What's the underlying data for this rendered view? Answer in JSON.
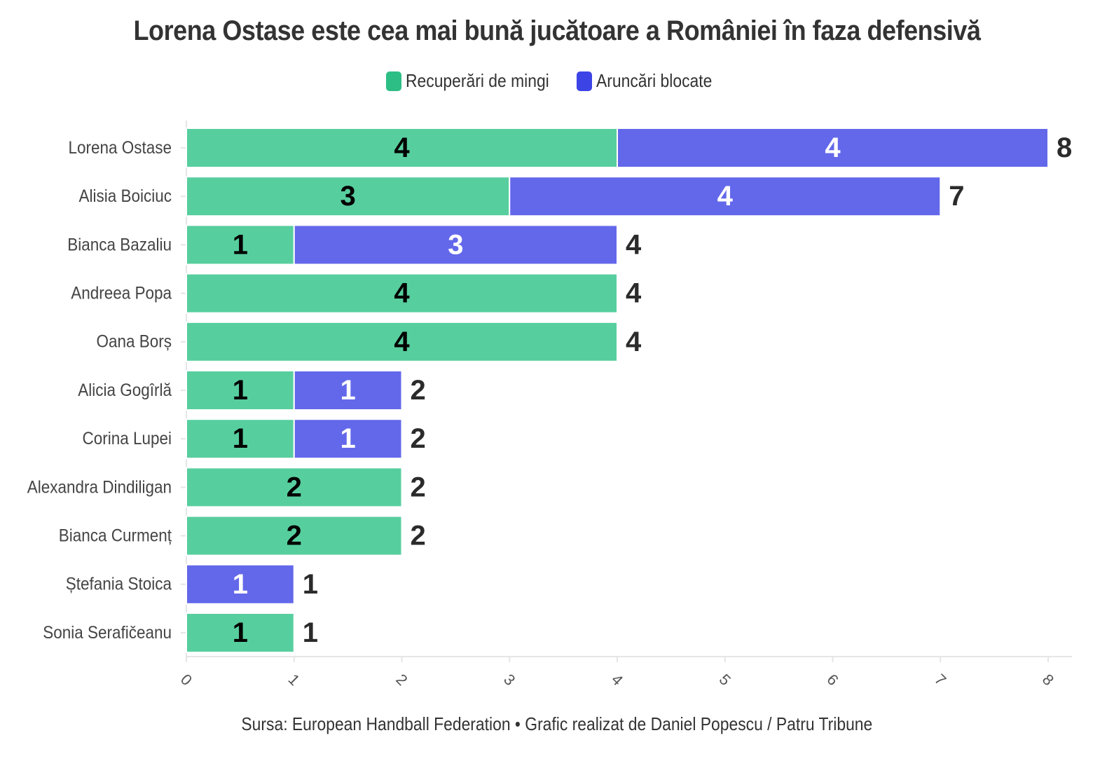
{
  "title": "Lorena Ostase este cea mai bună jucătoare a României în faza defensivă",
  "source": "Sursa: European Handball Federation • Grafic realizat de Daniel Popescu / Patru Tribune",
  "colors": {
    "recuperari": "#57CE9E",
    "recuperari_legend": "#2DBE85",
    "aruncari": "#6368EA",
    "aruncari_legend": "#3D44E6",
    "axis": "#e5e5e5",
    "text": "#333333"
  },
  "chart_data": {
    "type": "bar",
    "orientation": "horizontal",
    "stacked": true,
    "categories": [
      "Lorena Ostase",
      "Alisia Boiciuc",
      "Bianca Bazaliu",
      "Andreea Popa",
      "Oana Borș",
      "Alicia Gogîrlă",
      "Corina Lupei",
      "Alexandra Dindiligan",
      "Bianca Curmenț",
      "Ștefania Stoica",
      "Sonia Serafičeanu"
    ],
    "series": [
      {
        "name": "Recuperări de mingi",
        "values": [
          4,
          3,
          1,
          4,
          4,
          1,
          1,
          2,
          2,
          0,
          1
        ]
      },
      {
        "name": "Aruncări blocate",
        "values": [
          4,
          4,
          3,
          0,
          0,
          1,
          1,
          0,
          0,
          1,
          0
        ]
      }
    ],
    "totals": [
      8,
      7,
      4,
      4,
      4,
      2,
      2,
      2,
      2,
      1,
      1
    ],
    "xlim": [
      0,
      8
    ],
    "xticks": [
      0,
      1,
      2,
      3,
      4,
      5,
      6,
      7,
      8
    ],
    "legend_position": "top",
    "grid": false
  }
}
